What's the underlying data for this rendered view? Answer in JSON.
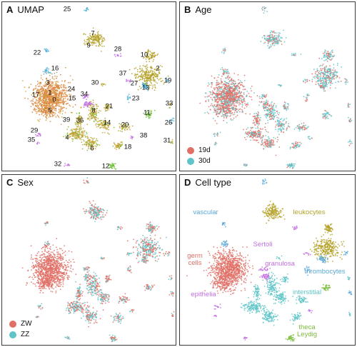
{
  "colors": {
    "red": "#e07066",
    "cyan": "#5fc4c8",
    "gold": "#b5a22a",
    "green": "#7dbb3c",
    "purple": "#c26ee0",
    "blue": "#5aa8d8",
    "orange": "#d8952e"
  },
  "panels": {
    "a": {
      "letter": "A",
      "title": "UMAP"
    },
    "b": {
      "letter": "B",
      "title": "Age"
    },
    "c": {
      "letter": "C",
      "title": "Sex"
    },
    "d": {
      "letter": "D",
      "title": "Cell type"
    }
  },
  "cluster_labels": [
    "25",
    "7",
    "9",
    "28",
    "10",
    "22",
    "16",
    "2",
    "37",
    "3",
    "27",
    "19",
    "13",
    "30",
    "24",
    "23",
    "17",
    "1",
    "15",
    "0",
    "34",
    "33",
    "21",
    "8",
    "5",
    "39",
    "36",
    "11",
    "26",
    "14",
    "20",
    "29",
    "38",
    "35",
    "4",
    "31",
    "18",
    "6",
    "32",
    "12"
  ],
  "legend_age": [
    {
      "label": "19d",
      "color": "#e07066"
    },
    {
      "label": "30d",
      "color": "#5fc4c8"
    }
  ],
  "legend_sex": [
    {
      "label": "ZW",
      "color": "#e07066"
    },
    {
      "label": "ZZ",
      "color": "#5fc4c8"
    }
  ],
  "cell_types": {
    "vascular": "vascular",
    "leukocytes": "leukocytes",
    "sertoli": "Sertoli",
    "germ_cells": "germ\ncells",
    "granulosa": "granulosa",
    "thrombocytes": "thrombocytes",
    "interstitial": "interstitial",
    "epithelia": "epithelia",
    "theca_leydig": "theca\nLeydig"
  }
}
